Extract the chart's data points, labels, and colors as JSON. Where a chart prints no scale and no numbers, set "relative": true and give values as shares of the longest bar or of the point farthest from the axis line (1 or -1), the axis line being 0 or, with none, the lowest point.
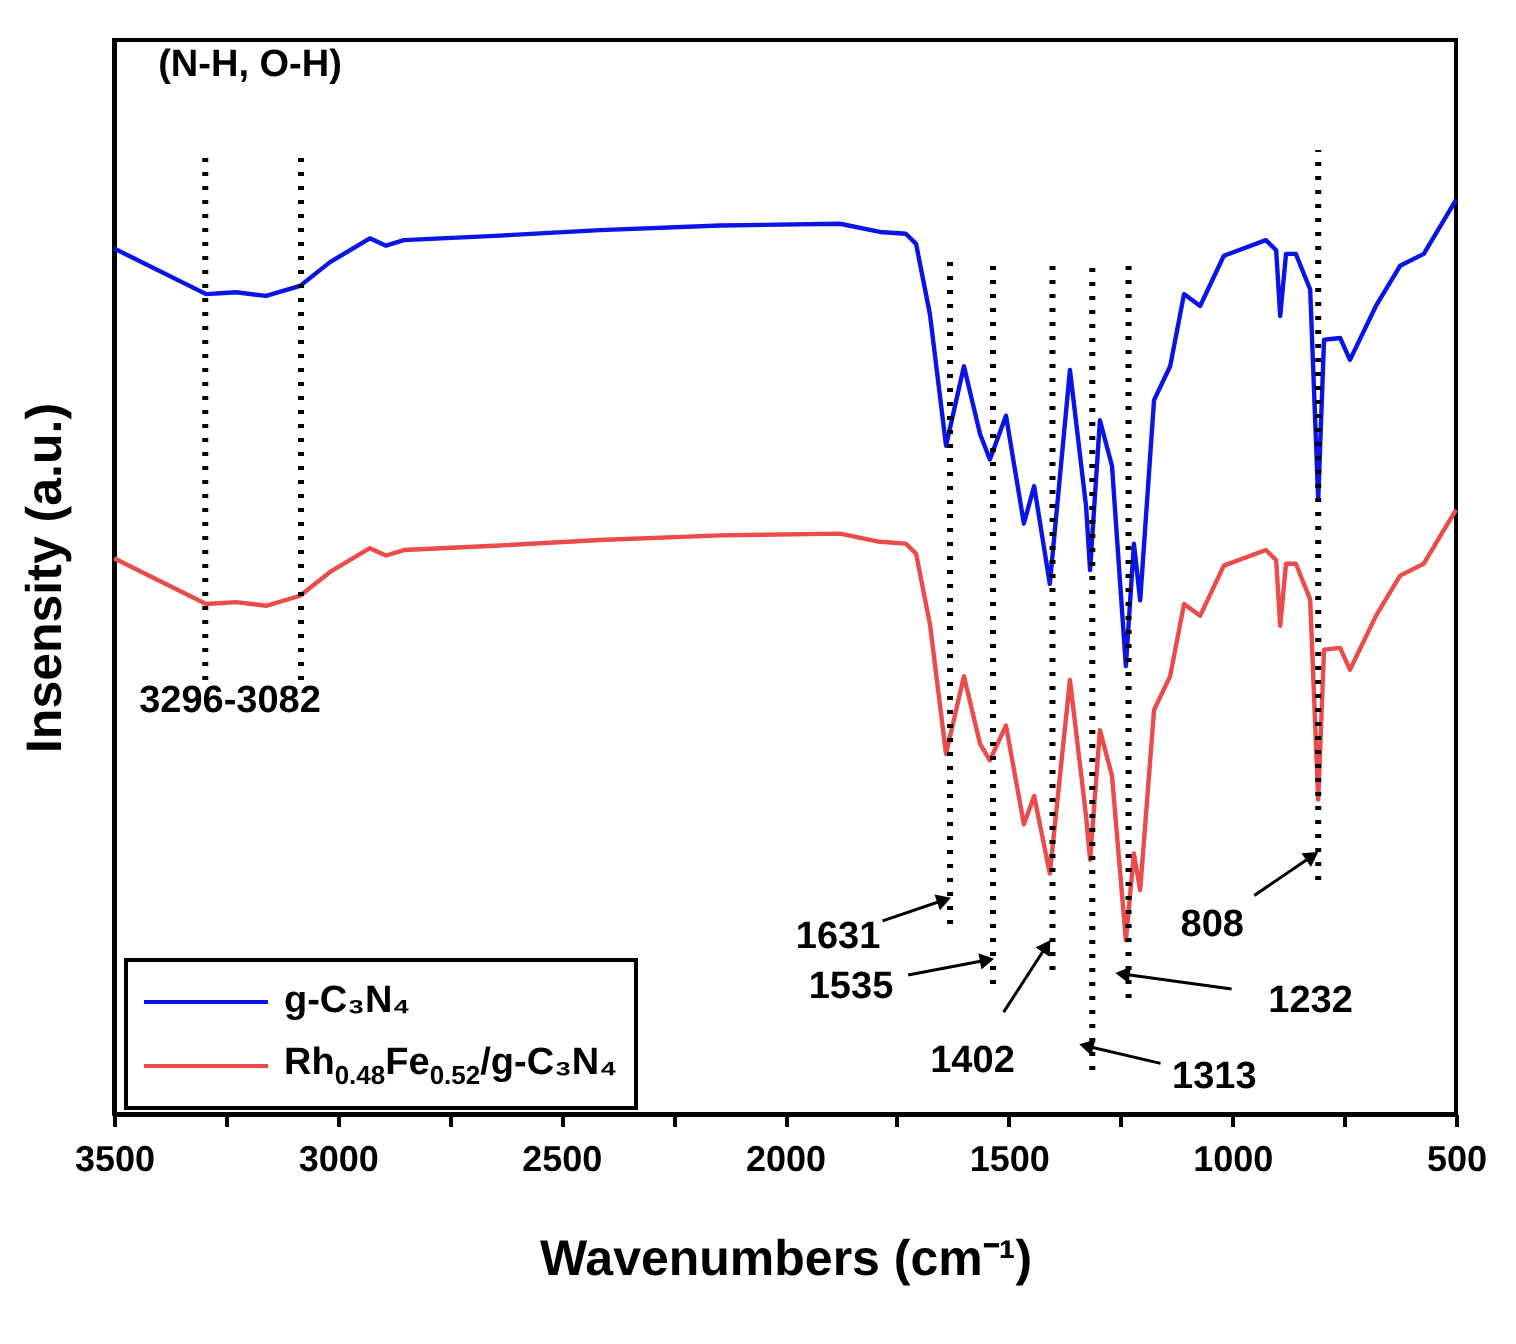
{
  "chart_data": {
    "type": "line",
    "relative": true,
    "xlabel": "Wavenumbers (cm⁻¹)",
    "ylabel": "Insensity (a.u.)",
    "xlim": [
      3500,
      500
    ],
    "xticks": [
      3500,
      {
        "value": 3250,
        "label": null
      },
      3000,
      {
        "value": 2750,
        "label": null
      },
      2500,
      {
        "value": 2250,
        "label": null
      },
      2000,
      {
        "value": 1750,
        "label": null
      },
      1500,
      {
        "value": 1250,
        "label": null
      },
      1000,
      {
        "value": 750,
        "label": null
      },
      500
    ],
    "x": [
      3500,
      3294,
      3227,
      3160,
      3084,
      3017,
      2928,
      2892,
      2852,
      2637,
      2414,
      2145,
      1877,
      1788,
      1730,
      1707,
      1676,
      1640,
      1600,
      1564,
      1542,
      1506,
      1466,
      1443,
      1408,
      1363,
      1327,
      1318,
      1296,
      1269,
      1238,
      1220,
      1206,
      1175,
      1139,
      1108,
      1072,
      1019,
      925,
      902,
      893,
      880,
      858,
      826,
      808,
      795,
      759,
      737,
      679,
      625,
      572,
      527,
      500
    ],
    "series": [
      {
        "name": "g-C₃N₄",
        "color": "#0a14e6",
        "values": [
          0.947,
          0.897,
          0.899,
          0.895,
          0.906,
          0.932,
          0.958,
          0.95,
          0.956,
          0.961,
          0.967,
          0.972,
          0.974,
          0.965,
          0.963,
          0.952,
          0.875,
          0.731,
          0.818,
          0.744,
          0.716,
          0.764,
          0.646,
          0.687,
          0.58,
          0.814,
          0.665,
          0.595,
          0.759,
          0.709,
          0.49,
          0.624,
          0.562,
          0.781,
          0.818,
          0.897,
          0.884,
          0.939,
          0.956,
          0.945,
          0.873,
          0.941,
          0.941,
          0.902,
          0.672,
          0.847,
          0.849,
          0.825,
          0.884,
          0.928,
          0.941,
          0.978,
          1.0
        ]
      },
      {
        "name": "Rh$_{0.48}$Fe$_{0.52}$/g-C₃N₄",
        "color": "#eb4b4b",
        "values": [
          0.608,
          0.558,
          0.56,
          0.556,
          0.567,
          0.593,
          0.619,
          0.611,
          0.617,
          0.622,
          0.628,
          0.633,
          0.635,
          0.626,
          0.624,
          0.613,
          0.536,
          0.394,
          0.479,
          0.405,
          0.387,
          0.425,
          0.317,
          0.348,
          0.263,
          0.475,
          0.326,
          0.278,
          0.42,
          0.37,
          0.19,
          0.285,
          0.245,
          0.442,
          0.479,
          0.558,
          0.545,
          0.6,
          0.617,
          0.606,
          0.534,
          0.602,
          0.602,
          0.563,
          0.344,
          0.508,
          0.51,
          0.486,
          0.545,
          0.589,
          0.602,
          0.639,
          0.661
        ]
      }
    ],
    "ref_lines": [
      {
        "axis": "x",
        "value": 3296,
        "color": "#000000",
        "line_style": "dotted"
      },
      {
        "axis": "x",
        "value": 3082,
        "color": "#000000",
        "line_style": "dotted"
      },
      {
        "axis": "x",
        "value": 1631,
        "label": "1631",
        "color": "#000000",
        "line_style": "dotted"
      },
      {
        "axis": "x",
        "value": 1535,
        "label": "1535",
        "color": "#000000",
        "line_style": "dotted"
      },
      {
        "axis": "x",
        "value": 1402,
        "label": "1402",
        "color": "#000000",
        "line_style": "dotted"
      },
      {
        "axis": "x",
        "value": 1313,
        "label": "1313",
        "color": "#000000",
        "line_style": "dotted"
      },
      {
        "axis": "x",
        "value": 1232,
        "label": "1232",
        "color": "#000000",
        "line_style": "dotted"
      },
      {
        "axis": "x",
        "value": 808,
        "label": "808",
        "color": "#000000",
        "line_style": "dotted"
      }
    ],
    "annotations": [
      "(N-H, O-H)",
      "3296-3082"
    ],
    "legend": "bottom left",
    "line_style": "solid",
    "marker": "none",
    "grid": false
  }
}
